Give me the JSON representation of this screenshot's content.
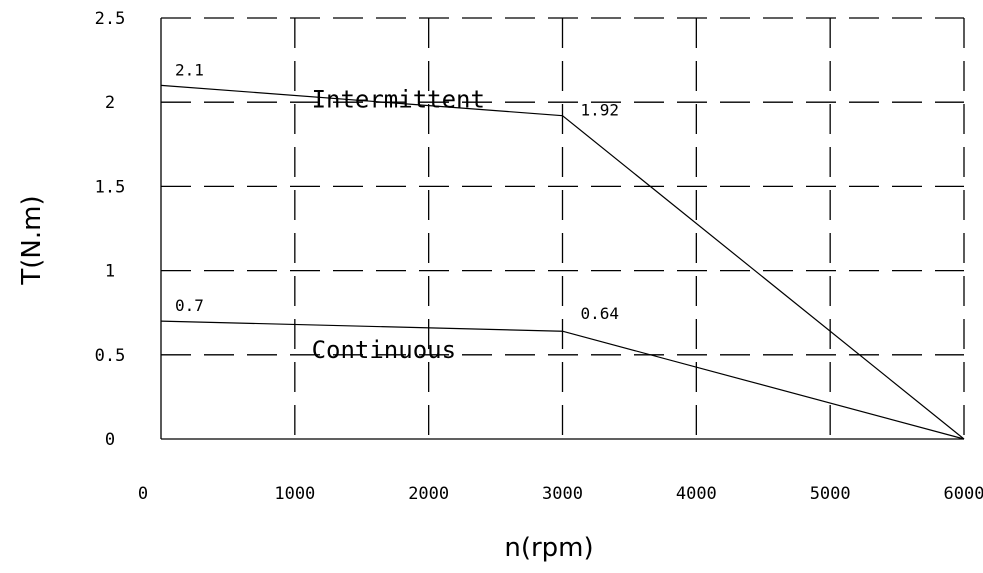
{
  "chart_data": {
    "type": "line",
    "xlabel": "n(rpm)",
    "ylabel": "T(N.m)",
    "xlim": [
      0,
      6000
    ],
    "ylim": [
      0,
      2.5
    ],
    "xticks": [
      0,
      1000,
      2000,
      3000,
      4000,
      5000,
      6000
    ],
    "xtick_labels": [
      "0",
      "1000",
      "2000",
      "3000",
      "4000",
      "5000",
      "6000"
    ],
    "yticks": [
      0,
      0.5,
      1,
      1.5,
      2,
      2.5
    ],
    "ytick_labels": [
      "0",
      "0.5",
      "1",
      "1.5",
      "2",
      "2.5"
    ],
    "grid": true,
    "series": [
      {
        "name": "Intermittent",
        "points": [
          [
            0,
            2.1
          ],
          [
            3000,
            1.92
          ],
          [
            6000,
            0
          ]
        ],
        "point_labels": [
          "2.1",
          "1.92",
          ""
        ]
      },
      {
        "name": "Continuous",
        "points": [
          [
            0,
            0.7
          ],
          [
            3000,
            0.64
          ],
          [
            6000,
            0
          ]
        ],
        "point_labels": [
          "0.7",
          "0.64",
          ""
        ]
      }
    ]
  }
}
